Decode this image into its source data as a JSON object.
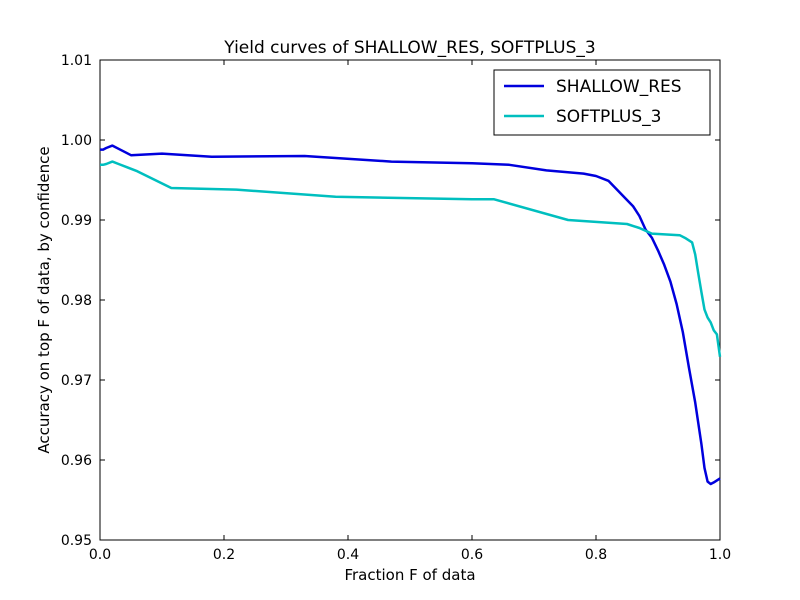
{
  "chart_data": {
    "type": "line",
    "title": "Yield curves of SHALLOW_RES, SOFTPLUS_3",
    "xlabel": "Fraction F of data",
    "ylabel": "Accuracy on top F of data, by confidence",
    "xlim": [
      0.0,
      1.0
    ],
    "ylim": [
      0.95,
      1.01
    ],
    "xticks": [
      "0.0",
      "0.2",
      "0.4",
      "0.6",
      "0.8",
      "1.0"
    ],
    "yticks": [
      "0.95",
      "0.96",
      "0.97",
      "0.98",
      "0.99",
      "1.00",
      "1.01"
    ],
    "grid": false,
    "legend_position": "top-right",
    "series": [
      {
        "name": "SHALLOW_RES",
        "color": "#0000dd",
        "x": [
          0.0,
          0.005,
          0.01,
          0.02,
          0.03,
          0.05,
          0.1,
          0.18,
          0.33,
          0.47,
          0.6,
          0.66,
          0.72,
          0.78,
          0.8,
          0.82,
          0.835,
          0.85,
          0.86,
          0.87,
          0.88,
          0.89,
          0.9,
          0.91,
          0.92,
          0.93,
          0.94,
          0.95,
          0.96,
          0.97,
          0.975,
          0.98,
          0.985,
          0.99,
          1.0
        ],
        "y": [
          0.9988,
          0.9988,
          0.999,
          0.9993,
          0.9989,
          0.9981,
          0.9983,
          0.9979,
          0.998,
          0.9973,
          0.9971,
          0.9969,
          0.9962,
          0.9958,
          0.9955,
          0.9949,
          0.9937,
          0.9925,
          0.9917,
          0.9905,
          0.9888,
          0.9878,
          0.9862,
          0.9844,
          0.9823,
          0.9795,
          0.976,
          0.9715,
          0.9672,
          0.962,
          0.959,
          0.9573,
          0.957,
          0.9572,
          0.9577
        ]
      },
      {
        "name": "SOFTPLUS_3",
        "color": "#00bfbf",
        "x": [
          0.0,
          0.005,
          0.01,
          0.02,
          0.03,
          0.06,
          0.115,
          0.22,
          0.38,
          0.6,
          0.635,
          0.755,
          0.85,
          0.87,
          0.89,
          0.935,
          0.945,
          0.955,
          0.96,
          0.965,
          0.97,
          0.975,
          0.98,
          0.985,
          0.99,
          0.995,
          1.0
        ],
        "y": [
          0.9969,
          0.9969,
          0.997,
          0.9973,
          0.997,
          0.9961,
          0.994,
          0.9938,
          0.9929,
          0.9926,
          0.9926,
          0.99,
          0.9895,
          0.989,
          0.9883,
          0.9881,
          0.9877,
          0.9872,
          0.9857,
          0.9833,
          0.981,
          0.9788,
          0.9778,
          0.9772,
          0.9762,
          0.9757,
          0.9729
        ]
      }
    ]
  }
}
